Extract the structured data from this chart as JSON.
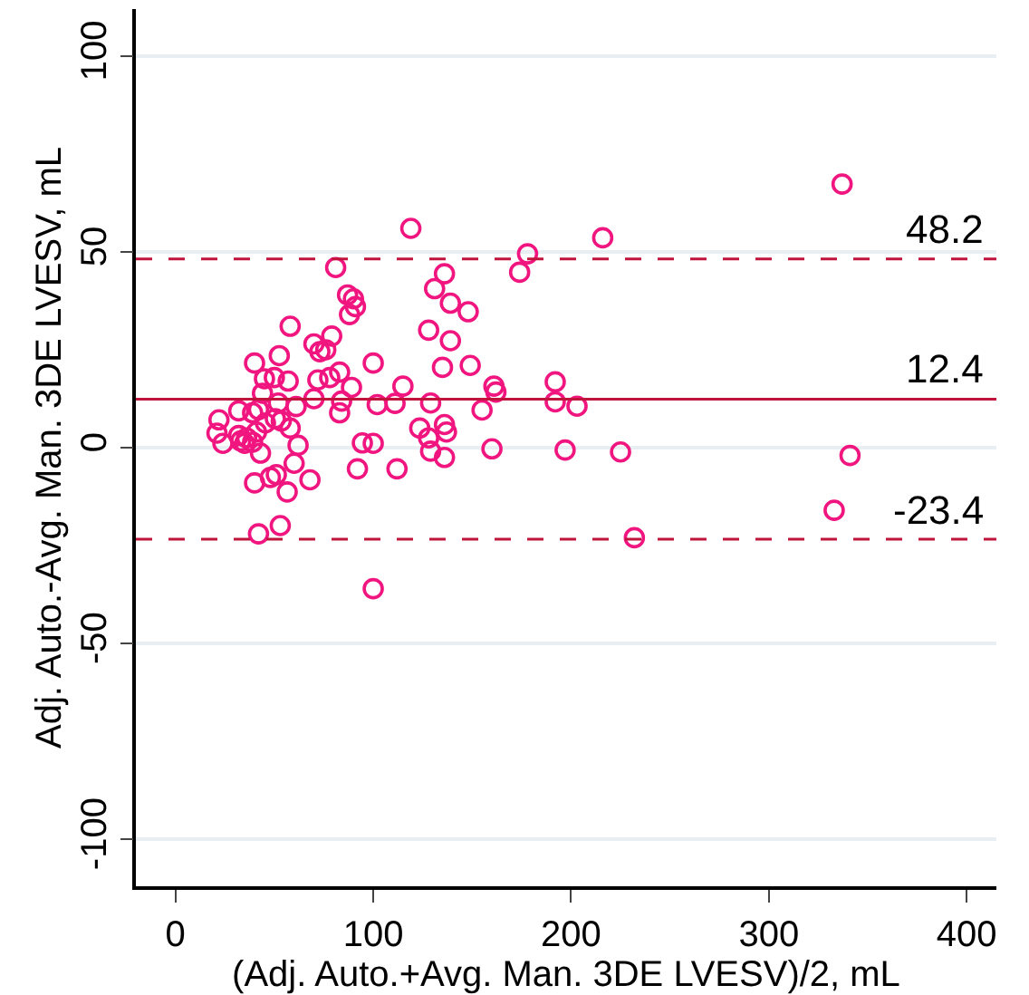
{
  "chart_data": {
    "type": "scatter",
    "xlabel": "(Adj. Auto.+Avg. Man. 3DE LVESV)/2, mL",
    "ylabel": "Adj. Auto.-Avg. Man. 3DE LVESV, mL",
    "xlim": [
      -20,
      415
    ],
    "xticks": [
      0,
      100,
      200,
      300,
      400
    ],
    "ylim": [
      -112,
      112
    ],
    "yticks": [
      -100,
      -50,
      0,
      50,
      100
    ],
    "grid": "y",
    "marker": "circle",
    "series": [
      {
        "color": "#f0157f",
        "x": [
          119,
          81,
          87,
          90,
          91,
          88,
          58,
          70,
          79,
          73,
          76,
          52.5,
          100,
          40,
          45,
          50,
          57,
          72,
          78,
          83,
          89,
          115,
          44,
          42,
          52,
          61,
          70,
          84,
          83,
          102,
          111,
          22,
          21,
          24,
          32,
          39,
          45.5,
          50.5,
          53.5,
          32,
          33,
          36,
          39,
          35,
          41,
          58,
          62,
          43,
          60,
          123.5,
          94.5,
          100,
          68,
          40,
          48,
          51,
          56.5,
          92,
          112,
          53,
          42,
          100,
          136,
          131,
          139,
          148,
          128,
          139,
          135,
          149,
          161,
          162,
          155,
          129,
          128,
          136,
          137,
          129,
          136,
          160,
          337,
          216,
          178,
          174,
          192,
          192,
          203,
          197,
          225,
          341,
          333,
          232
        ],
        "values": [
          56,
          46,
          39,
          38,
          36,
          34,
          31,
          26.5,
          28.5,
          24.5,
          25,
          23.5,
          21.6,
          21.6,
          17.6,
          17.9,
          17,
          17.3,
          17.9,
          19.3,
          15.4,
          15.7,
          13.9,
          9.7,
          11.4,
          10.5,
          12.5,
          11.9,
          8.9,
          11,
          11.3,
          7.1,
          3.7,
          1.1,
          9.4,
          8.9,
          6.3,
          7.4,
          6.8,
          3.1,
          1.7,
          2.5,
          1.4,
          1.1,
          4,
          5,
          0.6,
          -1.4,
          -4,
          5,
          1.2,
          1.1,
          -8.2,
          -9,
          -7.6,
          -6.9,
          -11.3,
          -5.4,
          -5.4,
          -19.9,
          -22,
          -36,
          44.4,
          40.6,
          36.9,
          34.7,
          30,
          27.3,
          20.5,
          21,
          15.7,
          14.2,
          9.6,
          11.4,
          2.5,
          5.9,
          4,
          -0.9,
          -2.5,
          -0.3,
          67.3,
          53.6,
          49.5,
          44.8,
          16.8,
          11.7,
          10.6,
          -0.6,
          -1.1,
          -2,
          -16,
          -23
        ]
      }
    ],
    "ref_lines": [
      {
        "axis": "y",
        "value": 48.2,
        "label": "48.2",
        "color": "#c0143c",
        "line_style": "dashed"
      },
      {
        "axis": "y",
        "value": 12.4,
        "label": "12.4",
        "color": "#c0143c",
        "line_style": "solid"
      },
      {
        "axis": "y",
        "value": -23.4,
        "label": "-23.4",
        "color": "#c0143c",
        "line_style": "dashed"
      }
    ]
  }
}
